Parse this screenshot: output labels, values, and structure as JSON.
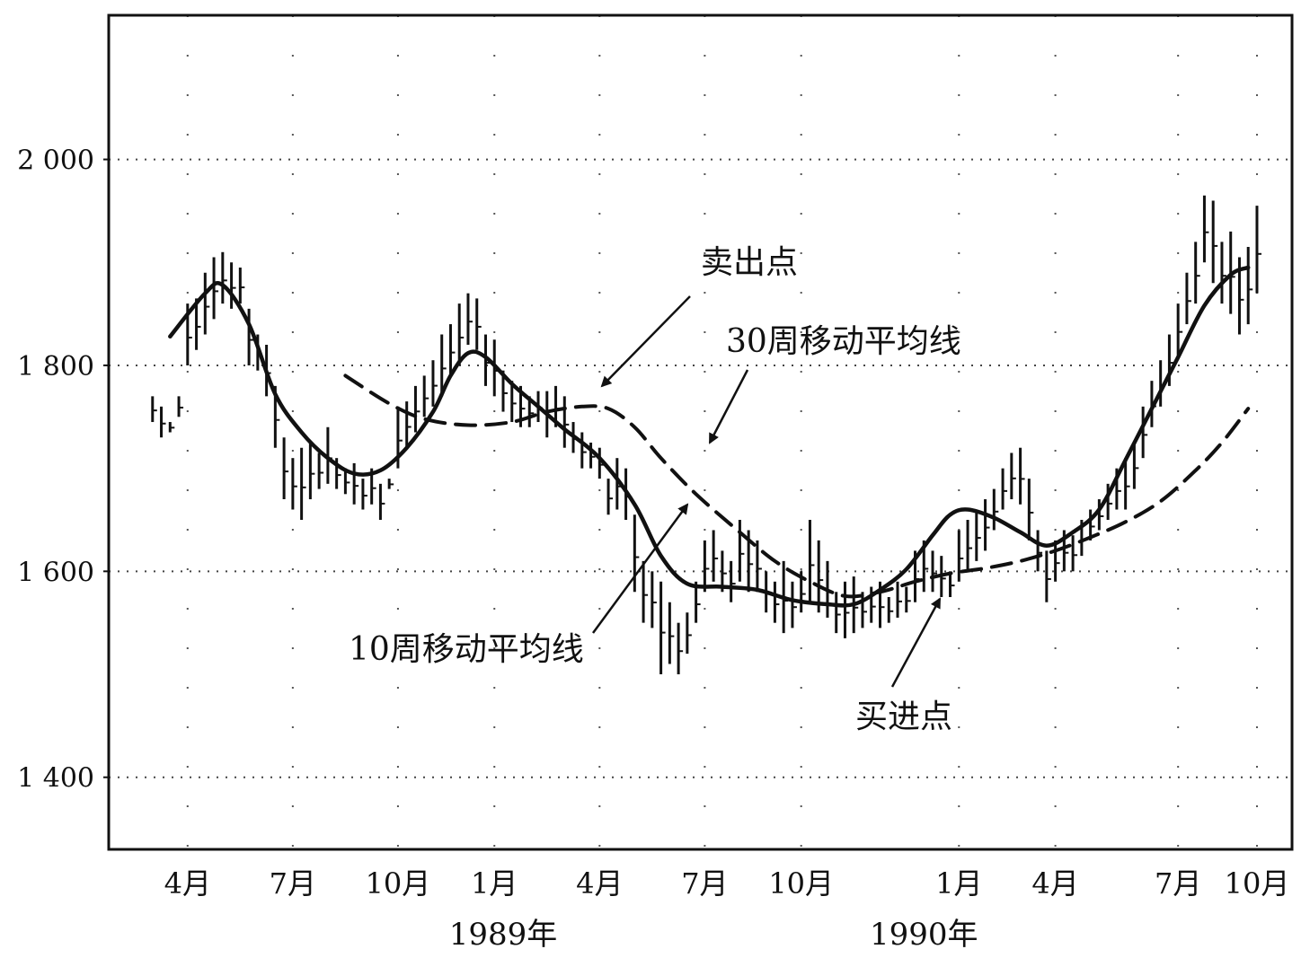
{
  "chart_data": {
    "type": "line",
    "ylim": [
      1330,
      2140
    ],
    "y_ticks": [
      {
        "value": 2000,
        "label": "2 000"
      },
      {
        "value": 1800,
        "label": "1 800"
      },
      {
        "value": 1600,
        "label": "1 600"
      },
      {
        "value": 1400,
        "label": "1 400"
      }
    ],
    "x_ticks": [
      {
        "week": 9,
        "label": "4月"
      },
      {
        "week": 21,
        "label": "7月"
      },
      {
        "week": 33,
        "label": "10月"
      },
      {
        "week": 44,
        "label": "1月"
      },
      {
        "week": 56,
        "label": "4月"
      },
      {
        "week": 68,
        "label": "7月"
      },
      {
        "week": 79,
        "label": "10月"
      },
      {
        "week": 97,
        "label": "1月"
      },
      {
        "week": 108,
        "label": "4月"
      },
      {
        "week": 122,
        "label": "7月"
      },
      {
        "week": 131,
        "label": "10月"
      }
    ],
    "years": [
      {
        "week": 45,
        "label": "1989年"
      },
      {
        "week": 93,
        "label": "1990年"
      }
    ],
    "grid": true,
    "series": [
      {
        "name": "10周移动平均线",
        "style": "solid",
        "points": [
          [
            7,
            1828
          ],
          [
            11,
            1870
          ],
          [
            13,
            1878
          ],
          [
            16,
            1840
          ],
          [
            19,
            1772
          ],
          [
            22,
            1735
          ],
          [
            25,
            1710
          ],
          [
            28,
            1695
          ],
          [
            31,
            1698
          ],
          [
            34,
            1720
          ],
          [
            37,
            1755
          ],
          [
            39,
            1790
          ],
          [
            41,
            1812
          ],
          [
            43,
            1808
          ],
          [
            46,
            1782
          ],
          [
            49,
            1760
          ],
          [
            52,
            1738
          ],
          [
            56,
            1710
          ],
          [
            60,
            1665
          ],
          [
            63,
            1615
          ],
          [
            66,
            1588
          ],
          [
            70,
            1585
          ],
          [
            74,
            1582
          ],
          [
            78,
            1572
          ],
          [
            82,
            1568
          ],
          [
            85,
            1568
          ],
          [
            88,
            1582
          ],
          [
            91,
            1602
          ],
          [
            94,
            1635
          ],
          [
            96,
            1655
          ],
          [
            98,
            1660
          ],
          [
            101,
            1652
          ],
          [
            104,
            1638
          ],
          [
            107,
            1625
          ],
          [
            110,
            1638
          ],
          [
            113,
            1660
          ],
          [
            116,
            1708
          ],
          [
            119,
            1758
          ],
          [
            122,
            1808
          ],
          [
            125,
            1858
          ],
          [
            128,
            1888
          ],
          [
            130,
            1895
          ]
        ]
      },
      {
        "name": "30周移动平均线",
        "style": "dashed",
        "points": [
          [
            27,
            1790
          ],
          [
            32,
            1763
          ],
          [
            36,
            1748
          ],
          [
            41,
            1742
          ],
          [
            46,
            1745
          ],
          [
            50,
            1755
          ],
          [
            54,
            1760
          ],
          [
            57,
            1758
          ],
          [
            60,
            1740
          ],
          [
            63,
            1710
          ],
          [
            67,
            1675
          ],
          [
            72,
            1638
          ],
          [
            76,
            1610
          ],
          [
            80,
            1590
          ],
          [
            84,
            1576
          ],
          [
            88,
            1580
          ],
          [
            92,
            1590
          ],
          [
            96,
            1598
          ],
          [
            100,
            1603
          ],
          [
            104,
            1610
          ],
          [
            108,
            1620
          ],
          [
            112,
            1633
          ],
          [
            116,
            1648
          ],
          [
            120,
            1668
          ],
          [
            124,
            1698
          ],
          [
            127,
            1725
          ],
          [
            130,
            1758
          ]
        ]
      },
      {
        "name": "weekly-price-bars",
        "style": "bars",
        "bars": [
          [
            5,
            1770,
            1745
          ],
          [
            6,
            1760,
            1730
          ],
          [
            7,
            1745,
            1735
          ],
          [
            8,
            1770,
            1750
          ],
          [
            9,
            1860,
            1800
          ],
          [
            10,
            1865,
            1815
          ],
          [
            11,
            1890,
            1830
          ],
          [
            12,
            1905,
            1845
          ],
          [
            13,
            1910,
            1860
          ],
          [
            14,
            1900,
            1855
          ],
          [
            15,
            1895,
            1860
          ],
          [
            16,
            1855,
            1800
          ],
          [
            17,
            1830,
            1795
          ],
          [
            18,
            1820,
            1770
          ],
          [
            19,
            1780,
            1720
          ],
          [
            20,
            1730,
            1670
          ],
          [
            21,
            1710,
            1660
          ],
          [
            22,
            1720,
            1650
          ],
          [
            23,
            1725,
            1670
          ],
          [
            24,
            1715,
            1680
          ],
          [
            25,
            1740,
            1685
          ],
          [
            26,
            1710,
            1680
          ],
          [
            27,
            1700,
            1675
          ],
          [
            28,
            1705,
            1665
          ],
          [
            29,
            1690,
            1660
          ],
          [
            30,
            1700,
            1665
          ],
          [
            31,
            1685,
            1650
          ],
          [
            32,
            1690,
            1680
          ],
          [
            33,
            1760,
            1700
          ],
          [
            34,
            1765,
            1720
          ],
          [
            35,
            1780,
            1735
          ],
          [
            36,
            1790,
            1750
          ],
          [
            37,
            1805,
            1760
          ],
          [
            38,
            1830,
            1770
          ],
          [
            39,
            1840,
            1790
          ],
          [
            40,
            1860,
            1800
          ],
          [
            41,
            1870,
            1820
          ],
          [
            42,
            1865,
            1815
          ],
          [
            43,
            1830,
            1780
          ],
          [
            44,
            1825,
            1770
          ],
          [
            45,
            1795,
            1755
          ],
          [
            46,
            1785,
            1745
          ],
          [
            47,
            1780,
            1740
          ],
          [
            48,
            1770,
            1740
          ],
          [
            49,
            1775,
            1745
          ],
          [
            50,
            1775,
            1730
          ],
          [
            51,
            1780,
            1740
          ],
          [
            52,
            1770,
            1720
          ],
          [
            53,
            1745,
            1715
          ],
          [
            54,
            1735,
            1700
          ],
          [
            55,
            1725,
            1700
          ],
          [
            56,
            1720,
            1690
          ],
          [
            57,
            1690,
            1655
          ],
          [
            58,
            1710,
            1660
          ],
          [
            59,
            1700,
            1650
          ],
          [
            60,
            1655,
            1580
          ],
          [
            61,
            1610,
            1550
          ],
          [
            62,
            1600,
            1545
          ],
          [
            63,
            1590,
            1500
          ],
          [
            64,
            1570,
            1510
          ],
          [
            65,
            1550,
            1500
          ],
          [
            66,
            1560,
            1520
          ],
          [
            67,
            1590,
            1550
          ],
          [
            68,
            1630,
            1580
          ],
          [
            69,
            1640,
            1590
          ],
          [
            70,
            1620,
            1580
          ],
          [
            71,
            1610,
            1570
          ],
          [
            72,
            1650,
            1590
          ],
          [
            73,
            1640,
            1580
          ],
          [
            74,
            1630,
            1580
          ],
          [
            75,
            1600,
            1560
          ],
          [
            76,
            1590,
            1550
          ],
          [
            77,
            1610,
            1540
          ],
          [
            78,
            1590,
            1545
          ],
          [
            79,
            1600,
            1560
          ],
          [
            80,
            1650,
            1570
          ],
          [
            81,
            1630,
            1560
          ],
          [
            82,
            1610,
            1555
          ],
          [
            83,
            1580,
            1540
          ],
          [
            84,
            1590,
            1535
          ],
          [
            85,
            1595,
            1540
          ],
          [
            86,
            1580,
            1545
          ],
          [
            87,
            1585,
            1550
          ],
          [
            88,
            1590,
            1545
          ],
          [
            89,
            1575,
            1550
          ],
          [
            90,
            1590,
            1555
          ],
          [
            91,
            1585,
            1560
          ],
          [
            92,
            1620,
            1570
          ],
          [
            93,
            1630,
            1580
          ],
          [
            94,
            1620,
            1580
          ],
          [
            95,
            1615,
            1575
          ],
          [
            96,
            1600,
            1575
          ],
          [
            97,
            1640,
            1590
          ],
          [
            98,
            1650,
            1600
          ],
          [
            99,
            1660,
            1610
          ],
          [
            100,
            1670,
            1620
          ],
          [
            101,
            1680,
            1640
          ],
          [
            102,
            1700,
            1660
          ],
          [
            103,
            1715,
            1670
          ],
          [
            104,
            1720,
            1665
          ],
          [
            105,
            1690,
            1630
          ],
          [
            106,
            1640,
            1600
          ],
          [
            107,
            1620,
            1570
          ],
          [
            108,
            1630,
            1590
          ],
          [
            109,
            1640,
            1600
          ],
          [
            110,
            1635,
            1600
          ],
          [
            111,
            1650,
            1615
          ],
          [
            112,
            1660,
            1630
          ],
          [
            113,
            1670,
            1640
          ],
          [
            114,
            1685,
            1650
          ],
          [
            115,
            1700,
            1660
          ],
          [
            116,
            1710,
            1660
          ],
          [
            117,
            1725,
            1680
          ],
          [
            118,
            1760,
            1710
          ],
          [
            119,
            1785,
            1740
          ],
          [
            120,
            1805,
            1760
          ],
          [
            121,
            1830,
            1780
          ],
          [
            122,
            1860,
            1810
          ],
          [
            123,
            1890,
            1840
          ],
          [
            124,
            1920,
            1860
          ],
          [
            125,
            1965,
            1900
          ],
          [
            126,
            1960,
            1880
          ],
          [
            127,
            1920,
            1860
          ],
          [
            128,
            1930,
            1850
          ],
          [
            129,
            1905,
            1830
          ],
          [
            130,
            1915,
            1840
          ],
          [
            131,
            1955,
            1870
          ]
        ]
      }
    ],
    "annotations": [
      {
        "name": "sell",
        "text": "卖出点",
        "target_week": 53.5,
        "target_value": 1774
      },
      {
        "name": "ma30",
        "text": "30周移动平均线",
        "target_week": 63.5,
        "target_value": 1718
      },
      {
        "name": "ma10",
        "text": "10周移动平均线",
        "target_week": 58.5,
        "target_value": 1664
      },
      {
        "name": "buy",
        "text": "买进点",
        "target_week": 86.5,
        "target_value": 1580
      }
    ]
  }
}
